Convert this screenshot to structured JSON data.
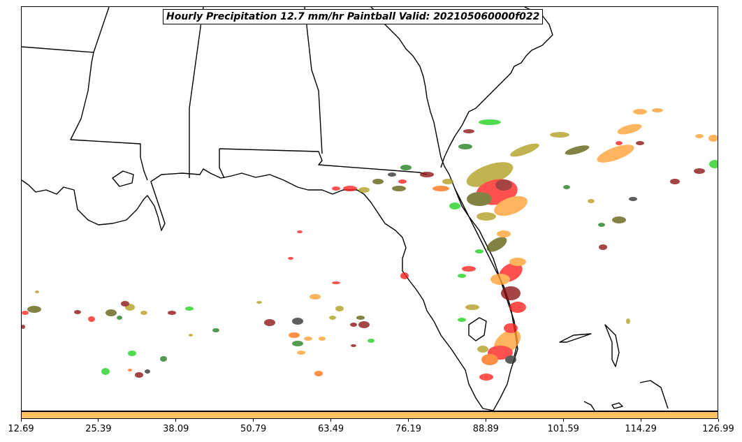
{
  "title": "Hourly Precipitation 12.7 mm/hr Paintball Valid: 202105060000f022",
  "colorbar": {
    "color": "#ffc060",
    "ticks": [
      "12.69",
      "25.39",
      "38.09",
      "50.79",
      "63.49",
      "76.19",
      "88.89",
      "101.59",
      "114.29",
      "126.99"
    ]
  },
  "colors": {
    "coast": "#000000",
    "member_colors": [
      "#ffa030",
      "#ff2020",
      "#b0a020",
      "#606010",
      "#20d020",
      "#208020",
      "#8b1010",
      "#303030",
      "#ff7010"
    ]
  }
}
